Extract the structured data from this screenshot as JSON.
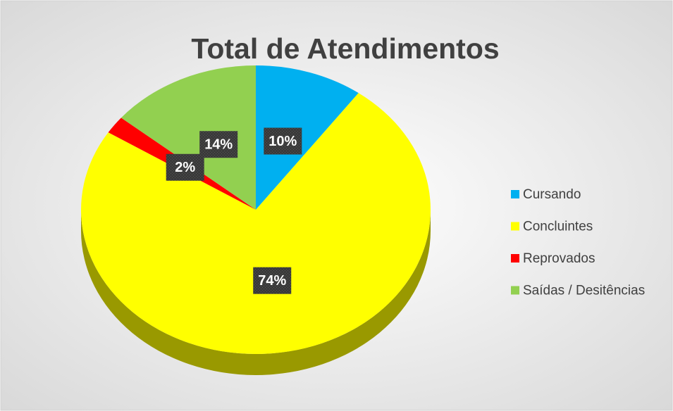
{
  "chart_data": {
    "type": "pie3d",
    "title": "Total de Atendimentos",
    "categories": [
      "Cursando",
      "Concluintes",
      "Reprovados",
      "Saídas / Desitências"
    ],
    "values": [
      10,
      74,
      2,
      14
    ],
    "value_labels": [
      "10%",
      "74%",
      "2%",
      "14%"
    ],
    "colors": [
      "#00b0f0",
      "#ffff00",
      "#ff0000",
      "#92d050"
    ],
    "legend": "right"
  }
}
